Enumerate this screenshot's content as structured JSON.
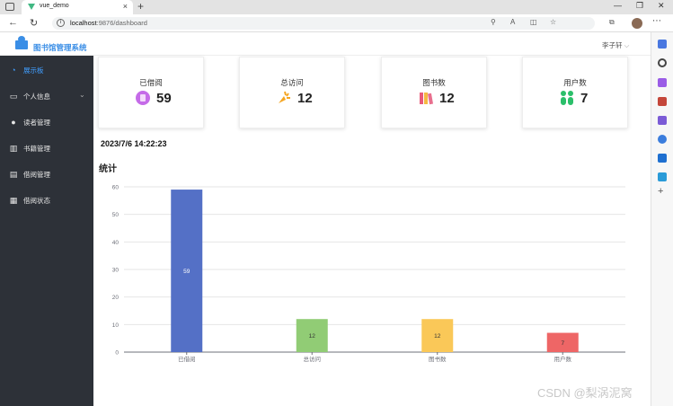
{
  "browser": {
    "tab_title": "vue_demo",
    "url_host": "localhost",
    "url_rest": ":9876/dashboard"
  },
  "app": {
    "title": "图书馆管理系统",
    "user_name": "李子轩",
    "user_caret": "⌵"
  },
  "sidebar": {
    "items": [
      {
        "label": "展示板",
        "icon": "dashboard-icon",
        "glyph": "◔",
        "active": true
      },
      {
        "label": "个人信息",
        "icon": "idcard-icon",
        "glyph": "▭",
        "has_arrow": true,
        "arrow": "⌄"
      },
      {
        "label": "读者管理",
        "icon": "user-icon",
        "glyph": "●"
      },
      {
        "label": "书籍管理",
        "icon": "books-icon",
        "glyph": "▥"
      },
      {
        "label": "借阅管理",
        "icon": "document-icon",
        "glyph": "▤"
      },
      {
        "label": "借阅状态",
        "icon": "grid-icon",
        "glyph": "▦"
      }
    ]
  },
  "cards": [
    {
      "label": "已借阅",
      "value": "59",
      "icon": "borrow-icon",
      "color": "#c56be8"
    },
    {
      "label": "总访问",
      "value": "12",
      "icon": "visit-icon",
      "color": "#f5a623"
    },
    {
      "label": "图书数",
      "value": "12",
      "icon": "books-color-icon",
      "color": "#e85a7a"
    },
    {
      "label": "用户数",
      "value": "7",
      "icon": "users-icon",
      "color": "#2bbf6a"
    }
  ],
  "datetime": "2023/7/6 14:22:23",
  "section_title": "统计",
  "chart_data": {
    "type": "bar",
    "categories": [
      "已借阅",
      "总访问",
      "图书数",
      "用户数"
    ],
    "values": [
      59,
      12,
      12,
      7
    ],
    "colors": [
      "#5470c6",
      "#91cc75",
      "#fac858",
      "#ee6666"
    ],
    "ylim": [
      0,
      60
    ],
    "yticks": [
      0,
      10,
      20,
      30,
      40,
      50,
      60
    ],
    "grid": true,
    "data_labels": true
  },
  "watermark": "CSDN @梨涡泥窝"
}
